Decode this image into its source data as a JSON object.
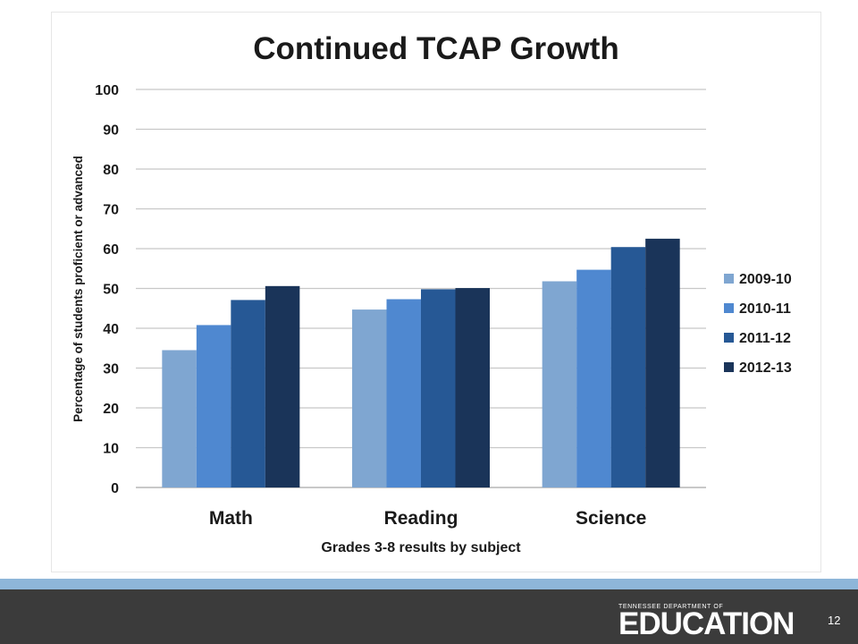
{
  "chart_data": {
    "type": "bar",
    "title": "Continued TCAP Growth",
    "xlabel": "Grades 3-8 results by subject",
    "ylabel": "Percentage of students proficient or advanced",
    "ylim": [
      0,
      100
    ],
    "yticks": [
      0,
      10,
      20,
      30,
      40,
      50,
      60,
      70,
      80,
      90,
      100
    ],
    "grid": true,
    "legend_position": "right",
    "categories": [
      "Math",
      "Reading",
      "Science"
    ],
    "series": [
      {
        "name": "2009-10",
        "color": "#7fa6d1",
        "values": [
          34.5,
          44.7,
          51.8
        ]
      },
      {
        "name": "2010-11",
        "color": "#4f88d0",
        "values": [
          40.8,
          47.3,
          54.7
        ]
      },
      {
        "name": "2011-12",
        "color": "#265895",
        "values": [
          47.1,
          49.8,
          60.4
        ]
      },
      {
        "name": "2012-13",
        "color": "#1a3459",
        "values": [
          50.6,
          50.1,
          62.5
        ]
      }
    ]
  },
  "footer": {
    "logo_small": "TENNESSEE DEPARTMENT OF",
    "logo_big": "EDUCATION",
    "page_number": "12"
  }
}
